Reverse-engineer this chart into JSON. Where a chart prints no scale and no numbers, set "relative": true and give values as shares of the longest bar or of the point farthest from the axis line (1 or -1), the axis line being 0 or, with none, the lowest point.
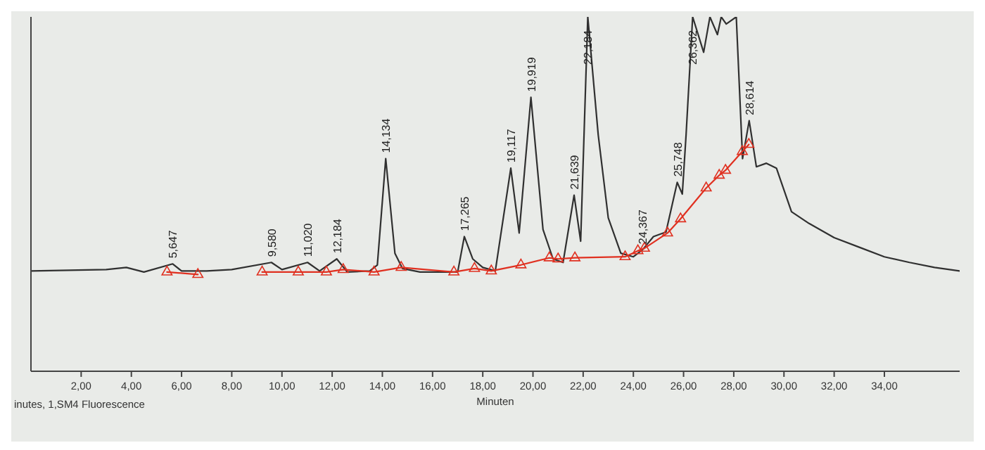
{
  "chart_data": {
    "type": "line",
    "relative": true,
    "xlabel": "Minuten",
    "xlim": [
      0,
      37
    ],
    "xticks": [
      {
        "value": 2,
        "label": "2,00"
      },
      {
        "value": 4,
        "label": "4,00"
      },
      {
        "value": 6,
        "label": "6,00"
      },
      {
        "value": 8,
        "label": "8,00"
      },
      {
        "value": 10,
        "label": "10,00"
      },
      {
        "value": 12,
        "label": "12,00"
      },
      {
        "value": 14,
        "label": "14,00"
      },
      {
        "value": 16,
        "label": "16,00"
      },
      {
        "value": 18,
        "label": "18,00"
      },
      {
        "value": 20,
        "label": "20,00"
      },
      {
        "value": 22,
        "label": "22,00"
      },
      {
        "value": 24,
        "label": "24,00"
      },
      {
        "value": 26,
        "label": "26,00"
      },
      {
        "value": 28,
        "label": "28,00"
      },
      {
        "value": 30,
        "label": "30,00"
      },
      {
        "value": 32,
        "label": "32,00"
      },
      {
        "value": 34,
        "label": "34,00"
      }
    ],
    "series": [
      {
        "color": "#303030",
        "marker": "none",
        "x": [
          0,
          3,
          3.8,
          4.5,
          5.647,
          6,
          7,
          8,
          9.58,
          10,
          11.02,
          11.5,
          12.184,
          12.6,
          13.5,
          13.8,
          14.134,
          14.5,
          14.8,
          15.5,
          17,
          17.265,
          17.6,
          18,
          18.5,
          19.117,
          19.45,
          19.919,
          20.4,
          20.8,
          21.2,
          21.639,
          21.9,
          22.184,
          22.6,
          23,
          23.5,
          24,
          24.367,
          24.8,
          25.3,
          25.748,
          25.95,
          26.1,
          26.362,
          26.8,
          27.05,
          27.35,
          27.5,
          27.7,
          28.1,
          28.35,
          28.614,
          28.9,
          29.3,
          29.7,
          30.3,
          31,
          32,
          33,
          34,
          35,
          36,
          37
        ],
        "values": [
          0.283,
          0.287,
          0.293,
          0.28,
          0.303,
          0.283,
          0.283,
          0.287,
          0.307,
          0.287,
          0.307,
          0.283,
          0.317,
          0.28,
          0.283,
          0.3,
          0.6,
          0.333,
          0.29,
          0.28,
          0.28,
          0.38,
          0.317,
          0.293,
          0.283,
          0.573,
          0.39,
          0.773,
          0.4,
          0.317,
          0.307,
          0.497,
          0.367,
          1,
          0.667,
          0.433,
          0.333,
          0.323,
          0.343,
          0.38,
          0.393,
          0.533,
          0.5,
          0.667,
          1,
          0.9,
          1,
          0.95,
          1,
          0.98,
          1,
          0.6,
          0.707,
          0.577,
          0.587,
          0.573,
          0.45,
          0.417,
          0.377,
          0.35,
          0.323,
          0.307,
          0.293,
          0.283
        ]
      },
      {
        "color": "#e03020",
        "marker": "triangle",
        "x": [
          5.42,
          6.65,
          8,
          9.21,
          10.65,
          11.77,
          12.44,
          13.67,
          14.75,
          16.85,
          17.67,
          18.34,
          19.52,
          20.65,
          21,
          21.67,
          23.67,
          24.18,
          24.44,
          25.36,
          25.88,
          26.9,
          27.42,
          27.67,
          28.34,
          28.6
        ],
        "values": [
          0.28,
          0.273,
          null,
          0.28,
          0.28,
          0.28,
          0.287,
          0.28,
          0.293,
          0.28,
          0.29,
          0.283,
          0.3,
          0.32,
          0.317,
          0.32,
          0.323,
          0.34,
          0.347,
          0.39,
          0.43,
          0.517,
          0.553,
          0.567,
          0.62,
          0.64
        ]
      }
    ],
    "annotations": [
      {
        "text": "5,647",
        "x": 5.647,
        "y": 0.303
      },
      {
        "text": "9,580",
        "x": 9.58,
        "y": 0.307
      },
      {
        "text": "11,020",
        "x": 11.02,
        "y": 0.307
      },
      {
        "text": "12,184",
        "x": 12.184,
        "y": 0.317
      },
      {
        "text": "14,134",
        "x": 14.134,
        "y": 0.6
      },
      {
        "text": "17,265",
        "x": 17.265,
        "y": 0.38
      },
      {
        "text": "19,117",
        "x": 19.117,
        "y": 0.573
      },
      {
        "text": "19,919",
        "x": 19.919,
        "y": 0.773
      },
      {
        "text": "21,639",
        "x": 21.639,
        "y": 0.497
      },
      {
        "text": "22,184",
        "x": 22.184,
        "y": 1
      },
      {
        "text": "24,367",
        "x": 24.367,
        "y": 0.343
      },
      {
        "text": "25,748",
        "x": 25.748,
        "y": 0.533
      },
      {
        "text": "26,362",
        "x": 26.362,
        "y": 1
      },
      {
        "text": "28,614",
        "x": 28.614,
        "y": 0.707
      },
      "inutes, 1,SM4 Fluorescence"
    ]
  }
}
